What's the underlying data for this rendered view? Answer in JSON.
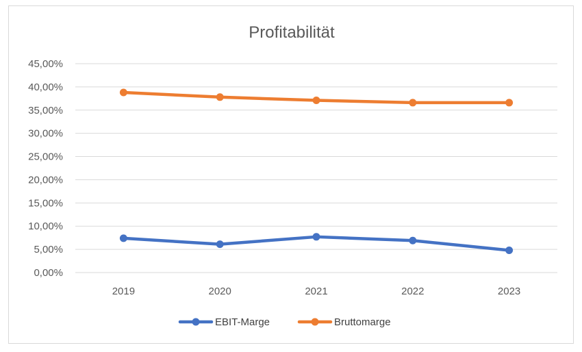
{
  "chart_data": {
    "type": "line",
    "title": "Profitabilität",
    "categories": [
      "2019",
      "2020",
      "2021",
      "2022",
      "2023"
    ],
    "y_ticks": [
      "0,00%",
      "5,00%",
      "10,00%",
      "15,00%",
      "20,00%",
      "25,00%",
      "30,00%",
      "35,00%",
      "40,00%",
      "45,00%"
    ],
    "ylim": [
      0,
      45
    ],
    "grid": true,
    "legend_position": "bottom",
    "series": [
      {
        "name": "EBIT-Marge",
        "color": "#4472c4",
        "values": [
          7.4,
          6.1,
          7.7,
          6.9,
          4.8
        ]
      },
      {
        "name": "Bruttomarge",
        "color": "#ed7d31",
        "values": [
          38.8,
          37.8,
          37.1,
          36.6,
          36.6
        ]
      }
    ]
  }
}
